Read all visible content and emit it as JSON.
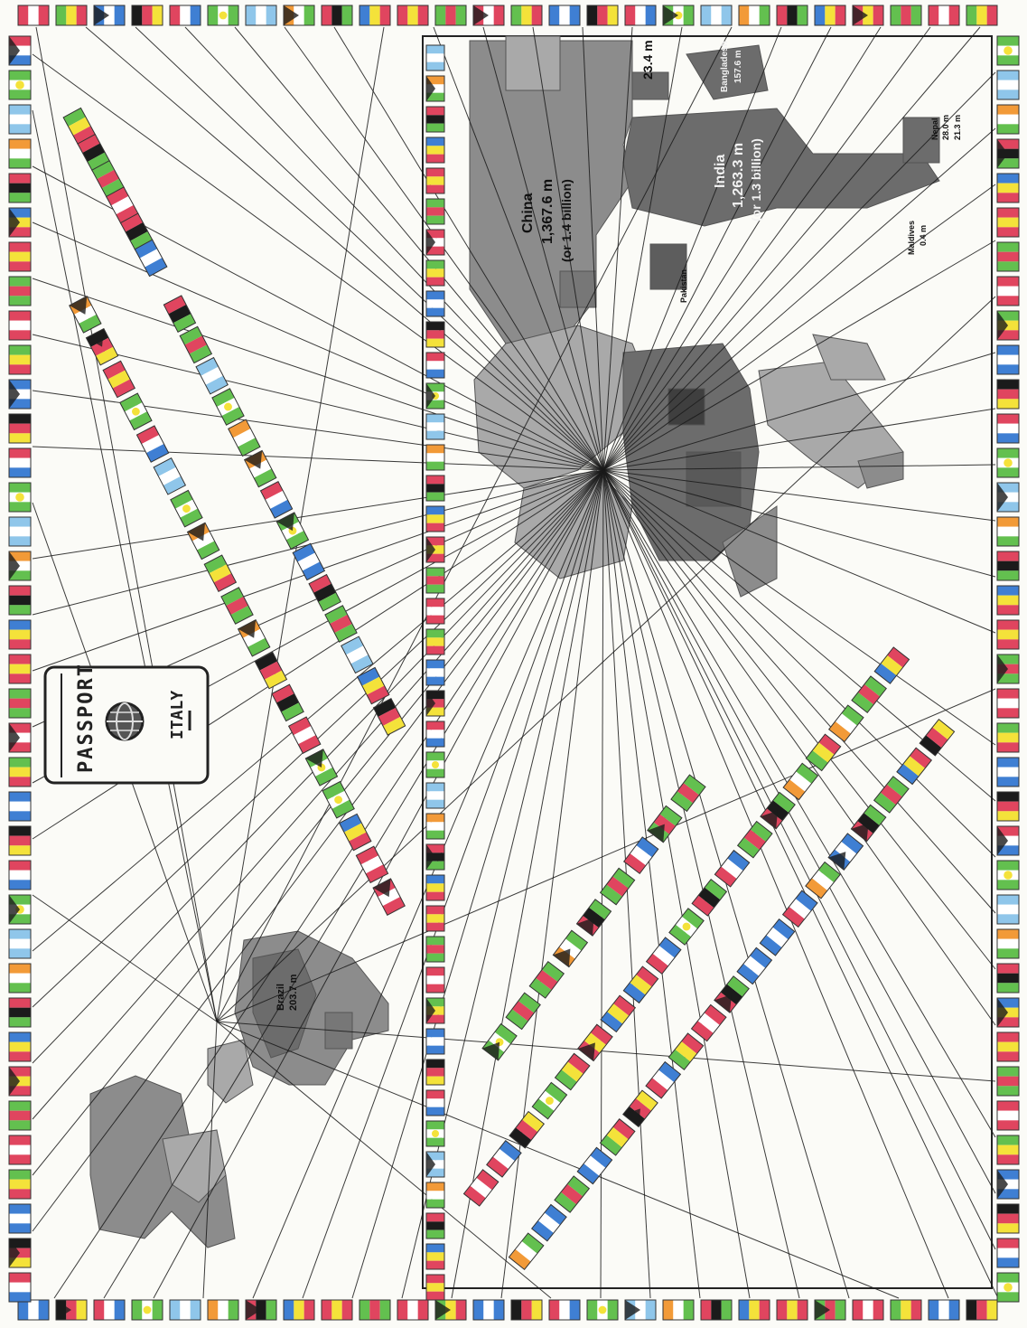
{
  "passport": {
    "title": "PASSPORT",
    "country": "ITALY"
  },
  "cartogram_asia": {
    "labels": {
      "china_name": "China",
      "china_pop": "1,367.6 m",
      "china_alt": "(or 1.4 billion)",
      "india_name": "India",
      "india_pop": "1,263.3 m",
      "india_alt": "(or 1.3 billion)",
      "taiwan_pop": "23.4 m",
      "bangladesh_name": "Bangladesh",
      "bangladesh_pop": "157.6 m",
      "nepal_name": "Nepal",
      "nepal_pop": "28.0 m",
      "srilanka_pop": "21.3 m",
      "pakistan_name": "Pakistan",
      "maldives_name": "Maldives",
      "maldives_pop": "0.4 m"
    }
  },
  "cartogram_americas": {
    "labels": {
      "brazil_name": "Brazil",
      "brazil_pop": "203.7 m"
    }
  },
  "colors": {
    "paper": "#fbfbf7",
    "line": "#1a1a1a",
    "map_dark": "#6c6c6c",
    "map_mid": "#8c8c8c",
    "map_light": "#a9a9a9",
    "flag_red": "#e0455f",
    "flag_green": "#63c04f",
    "flag_blue": "#3f7fd3",
    "flag_yellow": "#f4e23a",
    "flag_black": "#1b1b1b",
    "flag_white": "#ffffff",
    "flag_orange": "#f29a38",
    "flag_lightblue": "#8fc6ea"
  }
}
